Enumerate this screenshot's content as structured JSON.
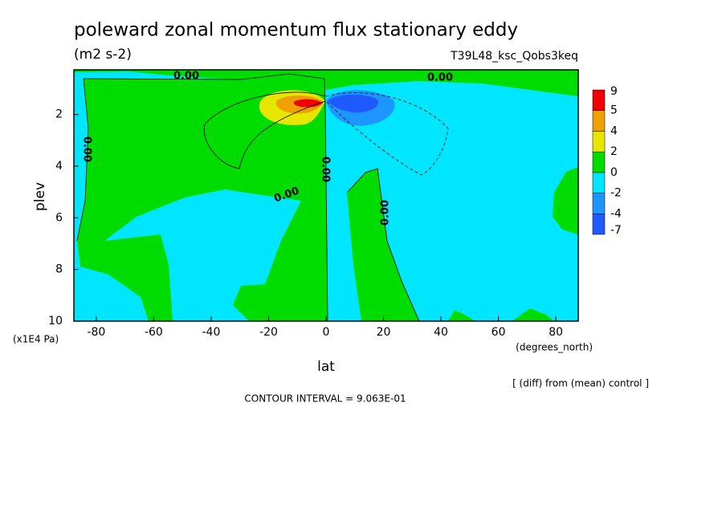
{
  "chart_data": {
    "type": "contour",
    "title": "poleward zonal momentum flux stationary eddy",
    "subtitle": "(m2 s-2)",
    "experiment": "T39L48_ksc_Qobs3keq",
    "xlabel": "lat",
    "ylabel": "plev",
    "x_unit_label": "(degrees_north)",
    "y_unit_label": "(x1E4 Pa)",
    "xlim": [
      -87.8,
      87.8
    ],
    "ylim": [
      10,
      0.27
    ],
    "xticks": [
      -80,
      -60,
      -40,
      -20,
      0,
      20,
      40,
      60,
      80
    ],
    "yticks": [
      2,
      4,
      6,
      8,
      10
    ],
    "levels": [
      -7,
      -4,
      -2,
      0,
      2,
      4,
      5,
      9
    ],
    "colors": [
      "#1e5aff",
      "#1e96ff",
      "#00e6ff",
      "#00dc00",
      "#e6e600",
      "#f0a000",
      "#f00000"
    ],
    "contour_labels": [
      "0.00",
      "0.00",
      "0.00",
      "0.00",
      "0.00",
      "0.00"
    ],
    "note": "[ (diff) from (mean) control ]",
    "contour_interval": "CONTOUR INTERVAL = 9.063E-01"
  }
}
